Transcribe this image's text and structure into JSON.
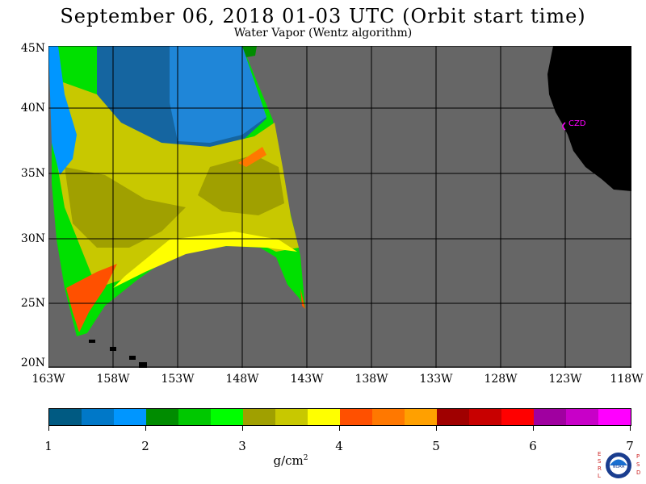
{
  "header": {
    "title": "September 06, 2018  01-03 UTC  (Orbit start time)",
    "subtitle": "Water Vapor (Wentz algorithm)"
  },
  "map": {
    "lat_labels": [
      "45N",
      "40N",
      "35N",
      "30N",
      "25N",
      "20N"
    ],
    "lon_labels": [
      "163W",
      "158W",
      "153W",
      "148W",
      "143W",
      "138W",
      "133W",
      "128W",
      "123W",
      "118W"
    ],
    "station_label": "CZD",
    "colors": {
      "background": "#666666",
      "land": "#000000",
      "grid": "#000000",
      "station": "#ff00ff"
    }
  },
  "colorbar": {
    "tick_labels": [
      "1",
      "2",
      "3",
      "4",
      "5",
      "6",
      "7"
    ],
    "units_base": "g/cm",
    "units_exp": "2",
    "colors": [
      "#005a82",
      "#0078c8",
      "#0096ff",
      "#008c00",
      "#00c800",
      "#00ff00",
      "#a0a000",
      "#c8c800",
      "#ffff00",
      "#ff5000",
      "#ff7800",
      "#ffa000",
      "#a00000",
      "#c80000",
      "#ff0000",
      "#a000a0",
      "#c800c8",
      "#ff00ff"
    ]
  },
  "logo": {
    "left_letters": [
      "E",
      "S",
      "R",
      "L"
    ],
    "right_letters": [
      "P",
      "S",
      "D"
    ],
    "center_text": "NOAA"
  }
}
